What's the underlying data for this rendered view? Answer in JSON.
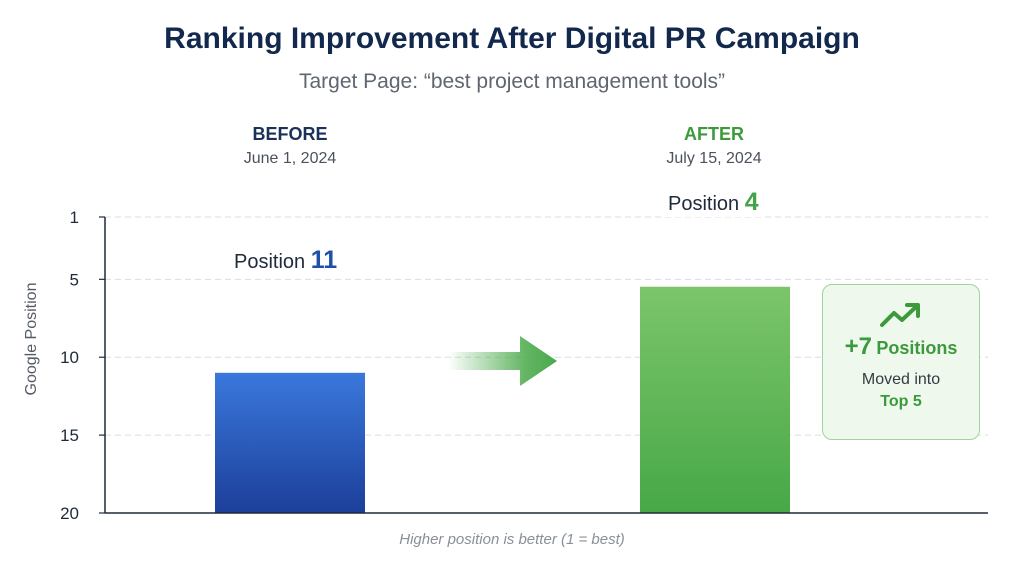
{
  "title": "Ranking Improvement After Digital PR Campaign",
  "subtitle": "Target Page: “best project management tools”",
  "groups": [
    {
      "label": "BEFORE",
      "date": "June 1, 2024",
      "position_prefix": "Position",
      "position_value": "11"
    },
    {
      "label": "AFTER",
      "date": "July 15, 2024",
      "position_prefix": "Position",
      "position_value": "4"
    }
  ],
  "badge": {
    "gain_value": "+7",
    "gain_unit": "Positions",
    "line1": "Moved into",
    "line2": "Top 5",
    "icon": "trend-up-icon"
  },
  "note": "Higher position is better (1 = best)",
  "colors": {
    "before_top": "#3a78dc",
    "before_bottom": "#1c3f9a",
    "after_top": "#7cc56a",
    "after_bottom": "#47a847",
    "arrow": "#4aa94a",
    "axis": "#1e2a3a",
    "grid": "#d9dde2"
  },
  "chart_data": {
    "type": "bar",
    "categories": [
      "BEFORE",
      "AFTER"
    ],
    "values": [
      11,
      4
    ],
    "ylabel": "Google Position",
    "ylim": [
      1,
      20
    ],
    "yaxis_inverted": true,
    "yticks": [
      1,
      5,
      10,
      15,
      20
    ],
    "grid": true
  }
}
